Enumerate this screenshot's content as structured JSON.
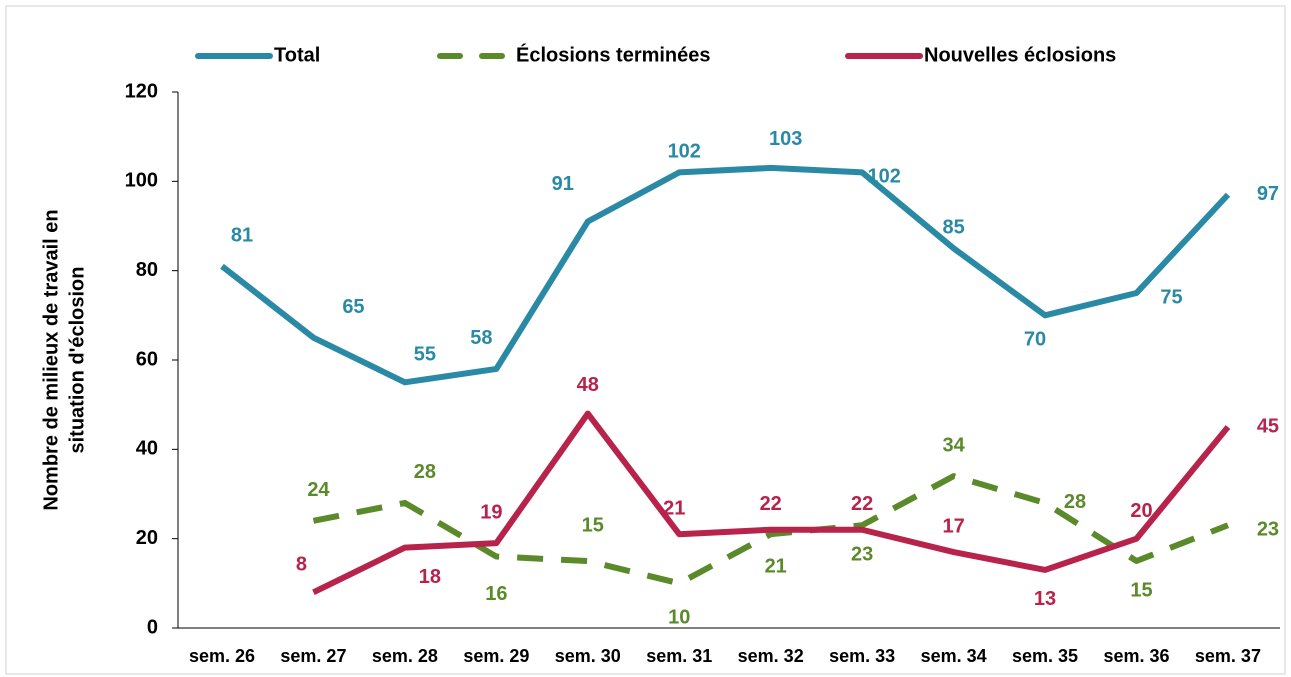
{
  "chart_data": {
    "type": "line",
    "y_label": [
      "Nombre de milieux de travail en",
      "situation d'éclosion"
    ],
    "categories": [
      "sem. 26",
      "sem. 27",
      "sem. 28",
      "sem. 29",
      "sem. 30",
      "sem. 31",
      "sem. 32",
      "sem. 33",
      "sem. 34",
      "sem. 35",
      "sem. 36",
      "sem. 37"
    ],
    "series": [
      {
        "name": "Total",
        "color": "#2a8aa6",
        "dashed": false,
        "values": [
          81,
          65,
          55,
          58,
          91,
          102,
          103,
          102,
          85,
          70,
          75,
          97
        ]
      },
      {
        "name": "Éclosions terminées",
        "color": "#5b8a2a",
        "dashed": true,
        "values": [
          null,
          24,
          28,
          16,
          15,
          10,
          21,
          23,
          34,
          28,
          15,
          23
        ]
      },
      {
        "name": "Nouvelles éclosions",
        "color": "#b7234a",
        "dashed": false,
        "values": [
          null,
          8,
          18,
          19,
          48,
          21,
          22,
          22,
          17,
          13,
          20,
          45
        ]
      }
    ],
    "ylim": [
      0,
      120
    ],
    "yticks": [
      0,
      20,
      40,
      60,
      80,
      100,
      120
    ],
    "legend": "top"
  }
}
